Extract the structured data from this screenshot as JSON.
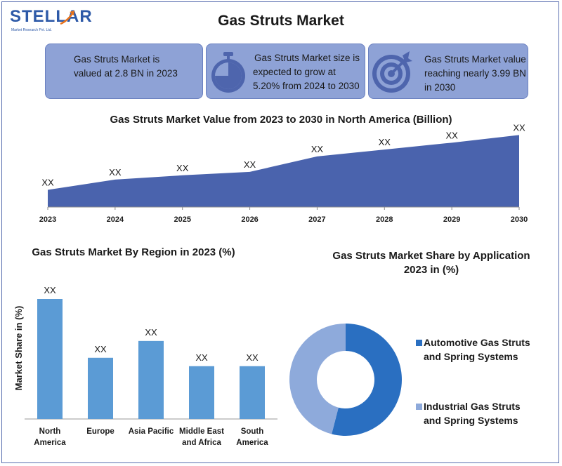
{
  "logo": {
    "name": "STELLAR",
    "tagline": "Market Research Pvt. Ltd."
  },
  "title": "Gas Struts Market",
  "cards": [
    {
      "text_lines": [
        "Gas Struts Market is",
        "valued at 2.8 BN in 2023"
      ],
      "icon": "none"
    },
    {
      "text_lines": [
        "Gas Struts Market size is",
        "expected to grow at",
        "5.20% from 2024 to 2030"
      ],
      "icon": "stopwatch-icon"
    },
    {
      "text_lines": [
        "Gas Struts Market value",
        "reaching nearly 3.99 BN",
        "in 2030"
      ],
      "icon": "target-icon"
    }
  ],
  "colors": {
    "area": "#4a63ad",
    "bar": "#5b9bd5",
    "donut_dark": "#2a6fc1",
    "donut_light": "#8eaadb",
    "card": "#8ea2d6"
  },
  "chart_data": [
    {
      "type": "area",
      "title": "Gas Struts Market Value from 2023 to 2030 in North America (Billion)",
      "categories": [
        "2023",
        "2024",
        "2025",
        "2026",
        "2027",
        "2028",
        "2029",
        "2030"
      ],
      "values": [
        1.0,
        1.6,
        1.85,
        2.05,
        2.95,
        3.35,
        3.75,
        4.2
      ],
      "data_labels": [
        "XX",
        "XX",
        "XX",
        "XX",
        "XX",
        "XX",
        "XX",
        "XX"
      ],
      "ylim": [
        0,
        4.5
      ],
      "grid": false
    },
    {
      "type": "bar",
      "title": "Gas Struts Market By Region in 2023 (%)",
      "ylabel": "Market Share in (%)",
      "categories": [
        [
          "North",
          "America"
        ],
        [
          "Europe"
        ],
        [
          "Asia Pacific"
        ],
        [
          "Middle East",
          "and Africa"
        ],
        [
          "South",
          "America"
        ]
      ],
      "values": [
        100,
        51,
        65,
        44,
        44
      ],
      "data_labels": [
        "XX",
        "XX",
        "XX",
        "XX",
        "XX"
      ],
      "ylim": [
        0,
        100
      ],
      "grid": false
    },
    {
      "type": "pie",
      "title_lines": [
        "Gas Struts Market Share by Application",
        "2023 in (%)"
      ],
      "slices": [
        {
          "label_lines": [
            "Automotive Gas Struts",
            "and Spring Systems"
          ],
          "value": 54
        },
        {
          "label_lines": [
            "Industrial Gas Struts",
            "and Spring Systems"
          ],
          "value": 46
        }
      ],
      "legend": "right"
    }
  ]
}
